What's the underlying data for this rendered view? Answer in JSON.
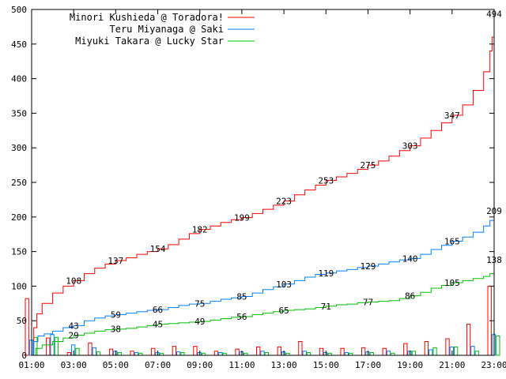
{
  "chart_data": {
    "type": "line",
    "title": "",
    "xlabel": "",
    "ylabel": "",
    "xlim": [
      1,
      23
    ],
    "ylim": [
      0,
      500
    ],
    "grid": false,
    "legend_position": "top-left",
    "x_ticks": [
      1,
      3,
      5,
      7,
      9,
      11,
      13,
      15,
      17,
      19,
      21,
      23
    ],
    "x_tick_labels": [
      "01:00",
      "03:00",
      "05:00",
      "07:00",
      "09:00",
      "11:00",
      "13:00",
      "15:00",
      "17:00",
      "19:00",
      "21:00",
      "23:00"
    ],
    "y_ticks": [
      0,
      50,
      100,
      150,
      200,
      250,
      300,
      350,
      400,
      450,
      500
    ],
    "y_tick_labels": [
      "0",
      "50",
      "100",
      "150",
      "200",
      "250",
      "300",
      "350",
      "400",
      "450",
      "500"
    ],
    "series": [
      {
        "name": "Minori Kushieda @ Toradora!",
        "color": "#ff0000",
        "points": [
          [
            1.0,
            0
          ],
          [
            1.1,
            40
          ],
          [
            1.25,
            60
          ],
          [
            1.5,
            75
          ],
          [
            2,
            90
          ],
          [
            2.5,
            100
          ],
          [
            3,
            108
          ],
          [
            3.5,
            118
          ],
          [
            4,
            126
          ],
          [
            4.5,
            132
          ],
          [
            5,
            137
          ],
          [
            5.5,
            141
          ],
          [
            6,
            146
          ],
          [
            6.5,
            150
          ],
          [
            7,
            154
          ],
          [
            7.5,
            160
          ],
          [
            8,
            168
          ],
          [
            8.5,
            176
          ],
          [
            9,
            182
          ],
          [
            9.5,
            187
          ],
          [
            10,
            192
          ],
          [
            10.5,
            196
          ],
          [
            11,
            199
          ],
          [
            11.5,
            205
          ],
          [
            12,
            211
          ],
          [
            12.5,
            217
          ],
          [
            13,
            223
          ],
          [
            13.5,
            232
          ],
          [
            14,
            239
          ],
          [
            14.5,
            246
          ],
          [
            15,
            253
          ],
          [
            15.5,
            258
          ],
          [
            16,
            263
          ],
          [
            16.5,
            269
          ],
          [
            17,
            275
          ],
          [
            17.5,
            281
          ],
          [
            18,
            288
          ],
          [
            18.5,
            296
          ],
          [
            19,
            303
          ],
          [
            19.5,
            314
          ],
          [
            20,
            325
          ],
          [
            20.5,
            336
          ],
          [
            21,
            347
          ],
          [
            21.5,
            362
          ],
          [
            22,
            383
          ],
          [
            22.5,
            410
          ],
          [
            22.8,
            440
          ],
          [
            22.9,
            460
          ],
          [
            23.0,
            494
          ]
        ],
        "labels": [
          {
            "x": 3,
            "y": 108,
            "text": "108"
          },
          {
            "x": 5,
            "y": 137,
            "text": "137"
          },
          {
            "x": 7,
            "y": 154,
            "text": "154"
          },
          {
            "x": 9,
            "y": 182,
            "text": "182"
          },
          {
            "x": 11,
            "y": 199,
            "text": "199"
          },
          {
            "x": 13,
            "y": 223,
            "text": "223"
          },
          {
            "x": 15,
            "y": 253,
            "text": "253"
          },
          {
            "x": 17,
            "y": 275,
            "text": "275"
          },
          {
            "x": 19,
            "y": 303,
            "text": "303"
          },
          {
            "x": 21,
            "y": 347,
            "text": "347"
          },
          {
            "x": 23,
            "y": 494,
            "text": "494"
          }
        ]
      },
      {
        "name": "Teru Miyanaga @ Saki",
        "color": "#0080ff",
        "points": [
          [
            1.0,
            0
          ],
          [
            1.1,
            20
          ],
          [
            1.3,
            28
          ],
          [
            1.6,
            31
          ],
          [
            2,
            35
          ],
          [
            2.5,
            40
          ],
          [
            3,
            43
          ],
          [
            3.5,
            50
          ],
          [
            4,
            54
          ],
          [
            4.5,
            57
          ],
          [
            5,
            59
          ],
          [
            5.5,
            61
          ],
          [
            6,
            63
          ],
          [
            6.5,
            65
          ],
          [
            7,
            66
          ],
          [
            7.5,
            69
          ],
          [
            8,
            72
          ],
          [
            8.5,
            74
          ],
          [
            9,
            75
          ],
          [
            9.5,
            78
          ],
          [
            10,
            81
          ],
          [
            10.5,
            83
          ],
          [
            11,
            85
          ],
          [
            11.5,
            90
          ],
          [
            12,
            95
          ],
          [
            12.5,
            99
          ],
          [
            13,
            103
          ],
          [
            13.5,
            108
          ],
          [
            14,
            113
          ],
          [
            14.5,
            117
          ],
          [
            15,
            119
          ],
          [
            15.5,
            122
          ],
          [
            16,
            124
          ],
          [
            16.5,
            127
          ],
          [
            17,
            129
          ],
          [
            17.5,
            132
          ],
          [
            18,
            135
          ],
          [
            18.5,
            138
          ],
          [
            19,
            140
          ],
          [
            19.5,
            146
          ],
          [
            20,
            153
          ],
          [
            20.5,
            159
          ],
          [
            21,
            165
          ],
          [
            21.5,
            171
          ],
          [
            22,
            178
          ],
          [
            22.5,
            187
          ],
          [
            22.8,
            195
          ],
          [
            23.0,
            209
          ]
        ],
        "labels": [
          {
            "x": 3,
            "y": 43,
            "text": "43"
          },
          {
            "x": 5,
            "y": 59,
            "text": "59"
          },
          {
            "x": 7,
            "y": 66,
            "text": "66"
          },
          {
            "x": 9,
            "y": 75,
            "text": "75"
          },
          {
            "x": 11,
            "y": 85,
            "text": "85"
          },
          {
            "x": 13,
            "y": 103,
            "text": "103"
          },
          {
            "x": 15,
            "y": 119,
            "text": "119"
          },
          {
            "x": 17,
            "y": 129,
            "text": "129"
          },
          {
            "x": 19,
            "y": 140,
            "text": "140"
          },
          {
            "x": 21,
            "y": 165,
            "text": "165"
          },
          {
            "x": 23,
            "y": 209,
            "text": "209"
          }
        ]
      },
      {
        "name": "Miyuki Takara @ Lucky Star",
        "color": "#00c000",
        "points": [
          [
            1.0,
            0
          ],
          [
            1.2,
            10
          ],
          [
            1.5,
            15
          ],
          [
            2,
            20
          ],
          [
            2.5,
            25
          ],
          [
            3,
            29
          ],
          [
            3.5,
            32
          ],
          [
            4,
            35
          ],
          [
            4.5,
            37
          ],
          [
            5,
            38
          ],
          [
            5.5,
            39
          ],
          [
            6,
            41
          ],
          [
            6.5,
            43
          ],
          [
            7,
            45
          ],
          [
            7.5,
            46
          ],
          [
            8,
            47
          ],
          [
            8.5,
            48
          ],
          [
            9,
            49
          ],
          [
            9.5,
            51
          ],
          [
            10,
            53
          ],
          [
            10.5,
            55
          ],
          [
            11,
            56
          ],
          [
            11.5,
            59
          ],
          [
            12,
            61
          ],
          [
            12.5,
            63
          ],
          [
            13,
            65
          ],
          [
            13.5,
            66
          ],
          [
            14,
            67
          ],
          [
            14.5,
            69
          ],
          [
            15,
            71
          ],
          [
            15.5,
            73
          ],
          [
            16,
            74
          ],
          [
            16.5,
            76
          ],
          [
            17,
            77
          ],
          [
            17.5,
            78
          ],
          [
            18,
            79
          ],
          [
            18.5,
            82
          ],
          [
            19,
            86
          ],
          [
            19.5,
            91
          ],
          [
            20,
            97
          ],
          [
            20.5,
            101
          ],
          [
            21,
            105
          ],
          [
            21.5,
            108
          ],
          [
            22,
            111
          ],
          [
            22.5,
            114
          ],
          [
            22.8,
            118
          ],
          [
            23.0,
            138
          ]
        ],
        "labels": [
          {
            "x": 3,
            "y": 29,
            "text": "29"
          },
          {
            "x": 5,
            "y": 38,
            "text": "38"
          },
          {
            "x": 7,
            "y": 45,
            "text": "45"
          },
          {
            "x": 9,
            "y": 49,
            "text": "49"
          },
          {
            "x": 11,
            "y": 56,
            "text": "56"
          },
          {
            "x": 13,
            "y": 65,
            "text": "65"
          },
          {
            "x": 15,
            "y": 71,
            "text": "71"
          },
          {
            "x": 17,
            "y": 77,
            "text": "77"
          },
          {
            "x": 19,
            "y": 86,
            "text": "86"
          },
          {
            "x": 21,
            "y": 105,
            "text": "105"
          },
          {
            "x": 23,
            "y": 138,
            "text": "138"
          }
        ]
      }
    ],
    "bars": {
      "type": "bar",
      "note_series_order": [
        "Minori Kushieda @ Toradora!",
        "Teru Miyanaga @ Saki",
        "Miyuki Takara @ Lucky Star"
      ],
      "hours": [
        1,
        2,
        3,
        4,
        5,
        6,
        7,
        8,
        9,
        10,
        11,
        12,
        13,
        14,
        15,
        16,
        17,
        18,
        19,
        20,
        21,
        22,
        23
      ],
      "values": [
        [
          82,
          25,
          4,
          18,
          9,
          6,
          10,
          13,
          13,
          6,
          9,
          12,
          12,
          20,
          10,
          10,
          11,
          10,
          17,
          20,
          24,
          45,
          100
        ],
        [
          22,
          30,
          15,
          11,
          6,
          4,
          4,
          5,
          4,
          4,
          5,
          6,
          5,
          6,
          4,
          4,
          5,
          6,
          6,
          8,
          12,
          13,
          30
        ],
        [
          26,
          26,
          10,
          5,
          4,
          3,
          3,
          4,
          3,
          3,
          3,
          4,
          3,
          4,
          3,
          3,
          4,
          3,
          6,
          11,
          12,
          6,
          28
        ]
      ]
    }
  }
}
